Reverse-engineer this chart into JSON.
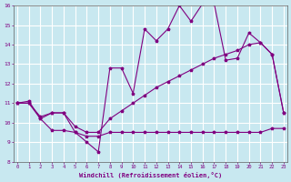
{
  "background_color": "#c8e8f0",
  "grid_color": "#ffffff",
  "line_color": "#800080",
  "xlim_min": 0,
  "xlim_max": 23,
  "ylim_min": 8,
  "ylim_max": 16,
  "xticks": [
    0,
    1,
    2,
    3,
    4,
    5,
    6,
    7,
    8,
    9,
    10,
    11,
    12,
    13,
    14,
    15,
    16,
    17,
    18,
    19,
    20,
    21,
    22,
    23
  ],
  "yticks": [
    8,
    9,
    10,
    11,
    12,
    13,
    14,
    15,
    16
  ],
  "xlabel": "Windchill (Refroidissement éolien,°C)",
  "line1_x": [
    0,
    1,
    2,
    3,
    4,
    5,
    6,
    7,
    8,
    9,
    10,
    11,
    12,
    13,
    14,
    15,
    16,
    17,
    18,
    19,
    20,
    21,
    22,
    23
  ],
  "line1_y": [
    11.0,
    11.1,
    10.2,
    10.5,
    10.5,
    9.5,
    9.0,
    8.5,
    12.8,
    12.8,
    11.5,
    14.8,
    14.2,
    14.8,
    16.0,
    15.2,
    16.1,
    16.1,
    13.2,
    13.3,
    14.6,
    14.1,
    13.5,
    10.5
  ],
  "line2_x": [
    0,
    1,
    2,
    3,
    4,
    5,
    6,
    7,
    8,
    9,
    10,
    11,
    12,
    13,
    14,
    15,
    16,
    17,
    18,
    19,
    20,
    21,
    22,
    23
  ],
  "line2_y": [
    11.0,
    11.0,
    10.2,
    9.6,
    9.6,
    9.5,
    9.3,
    9.3,
    9.5,
    9.5,
    9.5,
    9.5,
    9.5,
    9.5,
    9.5,
    9.5,
    9.5,
    9.5,
    9.5,
    9.5,
    9.5,
    9.5,
    9.7,
    9.7
  ],
  "line3_x": [
    0,
    1,
    2,
    3,
    4,
    5,
    6,
    7,
    8,
    9,
    10,
    11,
    12,
    13,
    14,
    15,
    16,
    17,
    18,
    19,
    20,
    21,
    22,
    23
  ],
  "line3_y": [
    11.0,
    11.0,
    10.3,
    10.5,
    10.5,
    9.8,
    9.5,
    9.5,
    10.2,
    10.6,
    11.0,
    11.4,
    11.8,
    12.1,
    12.4,
    12.7,
    13.0,
    13.3,
    13.5,
    13.7,
    14.0,
    14.1,
    13.5,
    10.5
  ]
}
